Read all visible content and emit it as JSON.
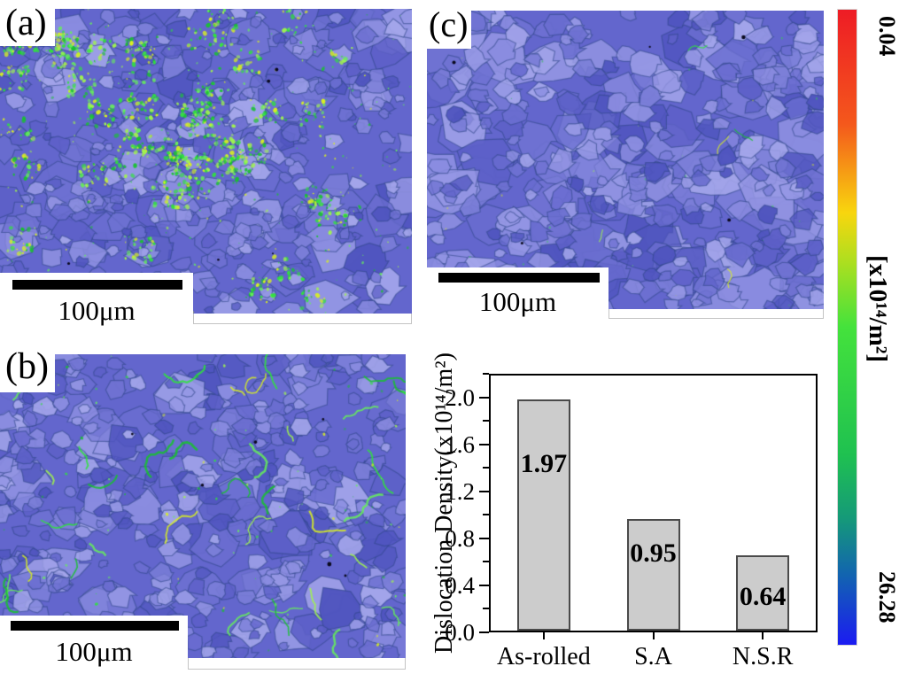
{
  "figure": {
    "description": "EBSD KAM micrograph panels with dislocation density bar chart and colorbar",
    "panels": [
      {
        "label": "(a)",
        "scale_bar_label": "100μm",
        "kam_level": "high"
      },
      {
        "label": "(b)",
        "scale_bar_label": "100μm",
        "kam_level": "medium"
      },
      {
        "label": "(c)",
        "scale_bar_label": "100μm",
        "kam_level": "low"
      }
    ]
  },
  "chart_data": {
    "type": "bar",
    "categories": [
      "As-rolled",
      "S.A",
      "N.S.R"
    ],
    "values": [
      1.97,
      0.95,
      0.64
    ],
    "value_labels": [
      "1.97",
      "0.95",
      "0.64"
    ],
    "ylabel": "Dislocation Density(x10¹⁴/m²)",
    "yticks": [
      0.0,
      0.4,
      0.8,
      1.2,
      1.6,
      2.0
    ],
    "ytick_labels": [
      "0.0",
      "0.4",
      "0.8",
      "1.2",
      "1.6",
      "2.0"
    ],
    "minor_tick_step": 0.2,
    "ylim": [
      0,
      2.2
    ],
    "grid": false,
    "legend_position": "none",
    "bar_color": "#cccccc",
    "bar_border_color": "#4a4a4a"
  },
  "colorbar": {
    "orientation": "vertical",
    "top_label": "0.04",
    "unit_label": "[x10¹⁴/m²]",
    "bottom_label": "26.28",
    "gradient": [
      "#ee1c25 0%",
      "#f4581c 18%",
      "#f8d60e 32%",
      "#aadf20 40%",
      "#44e23c 50%",
      "#1fc150 70%",
      "#159a78 80%",
      "#1264b0 89%",
      "#1b1bf2 100%"
    ]
  },
  "micrograph_colors": {
    "base": "#6366cd",
    "grain_shades": [
      "#7b7ed8",
      "#8a8ce0",
      "#5d60c8",
      "#9597e4",
      "#6f72d2",
      "#5055bf",
      "#a3a5ea",
      "#6a6dd0"
    ],
    "boundary": "#2d4686",
    "kam_green": [
      "#2fe33c",
      "#66ef5a",
      "#a0f44e",
      "#17c22e",
      "#d9f020"
    ],
    "dark_dot": "#0a0a1e"
  }
}
